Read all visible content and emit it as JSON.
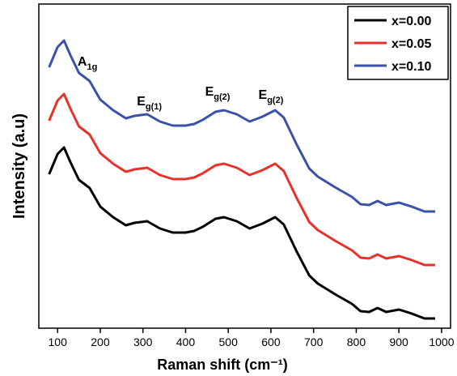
{
  "chart_data": {
    "type": "line",
    "x_label": "Raman shift (cm⁻¹)",
    "y_label": "Intensity (a.u)",
    "x": [
      80,
      100,
      115,
      130,
      150,
      175,
      200,
      230,
      260,
      280,
      310,
      340,
      370,
      400,
      420,
      440,
      470,
      490,
      520,
      550,
      580,
      610,
      630,
      660,
      690,
      710,
      750,
      790,
      810,
      830,
      850,
      870,
      900,
      930,
      960,
      985
    ],
    "series": [
      {
        "name": "x=0.00",
        "color": "#000000",
        "values": [
          47.5,
          53.75,
          55.75,
          51.25,
          45.75,
          43.25,
          37.5,
          34.25,
          31.75,
          32.5,
          33,
          30.75,
          29.5,
          29.5,
          30,
          31.25,
          33.75,
          34.25,
          33,
          30.75,
          32.25,
          34.25,
          32,
          23.75,
          16.25,
          13.75,
          10.5,
          7.5,
          5.25,
          5,
          6.25,
          5,
          5.75,
          4.5,
          3,
          3
        ]
      },
      {
        "name": "x=0.05",
        "color": "#e8312a",
        "values": [
          64,
          70.25,
          72.25,
          67.75,
          62.25,
          59.75,
          54,
          50.75,
          48.25,
          49,
          49.5,
          47.25,
          46,
          46,
          46.5,
          47.75,
          50.25,
          50.75,
          49.5,
          47.25,
          48.75,
          50.75,
          48.5,
          40.25,
          32.75,
          30.25,
          27,
          24,
          21.75,
          21.5,
          22.75,
          21.5,
          22.25,
          21,
          19.5,
          19.5
        ]
      },
      {
        "name": "x=0.10",
        "color": "#3a52a8",
        "values": [
          80.5,
          86.75,
          88.75,
          84.25,
          78.75,
          76.25,
          70.5,
          67.25,
          64.75,
          65.5,
          66,
          63.75,
          62.5,
          62.5,
          63,
          64.25,
          66.75,
          67.25,
          66,
          63.75,
          65.25,
          67.25,
          65,
          56.75,
          49.25,
          46.75,
          43.5,
          40.5,
          38.25,
          38,
          39.25,
          38,
          38.75,
          37.5,
          36,
          36
        ]
      }
    ],
    "xlim": [
      56,
      1021
    ],
    "xticks": [
      100,
      200,
      300,
      400,
      500,
      600,
      700,
      800,
      900,
      1000
    ],
    "ylim": [
      0,
      100
    ],
    "legend": "upper right",
    "annotations": [
      {
        "text": "A",
        "sub": "1g",
        "x": 170,
        "y": 81
      },
      {
        "text": "E",
        "sub": "g(1)",
        "x": 315,
        "y": 68.75
      },
      {
        "text": "E",
        "sub": "g(2)",
        "x": 475,
        "y": 71.75
      },
      {
        "text": "E",
        "sub": "g(2)",
        "x": 600,
        "y": 70.75
      }
    ]
  }
}
